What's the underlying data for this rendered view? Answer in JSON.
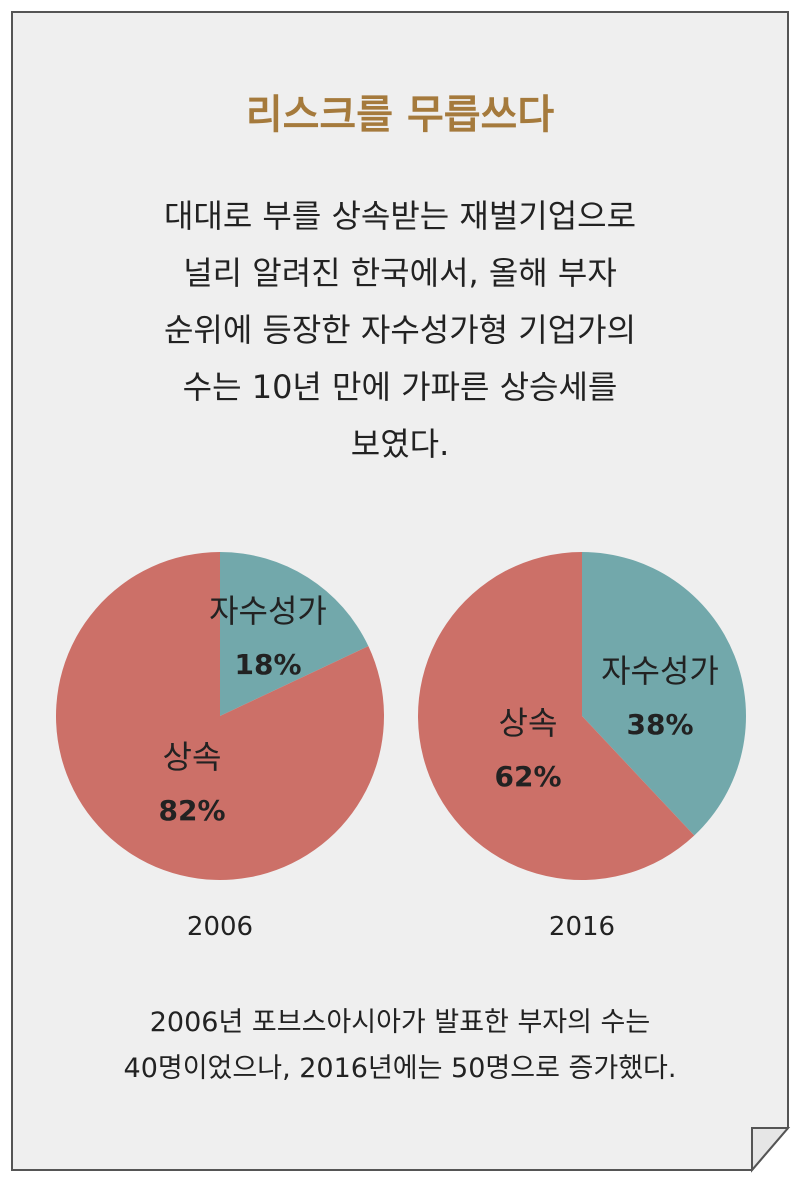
{
  "title": "리스크를 무릅쓰다",
  "intro_lines": [
    "대대로 부를 상속받는 재벌기업으로",
    "널리 알려진 한국에서, 올해 부자",
    "순위에 등장한 자수성가형 기업가의",
    "수는 10년 만에 가파른 상승세를",
    "보였다."
  ],
  "footer_lines": [
    "2006년 포브스아시아가 발표한 부자의 수는",
    "40명이었으나, 2016년에는 50명으로 증가했다."
  ],
  "colors": {
    "self_made": "#72a8ab",
    "inherited": "#cc7068",
    "title": "#a57a3c",
    "background": "#efefef"
  },
  "chart_data": [
    {
      "type": "pie",
      "title": "2006",
      "slices": [
        {
          "label": "자수성가",
          "value": 18,
          "value_label": "18%"
        },
        {
          "label": "상속",
          "value": 82,
          "value_label": "82%"
        }
      ]
    },
    {
      "type": "pie",
      "title": "2016",
      "slices": [
        {
          "label": "자수성가",
          "value": 38,
          "value_label": "38%"
        },
        {
          "label": "상속",
          "value": 62,
          "value_label": "62%"
        }
      ]
    }
  ]
}
